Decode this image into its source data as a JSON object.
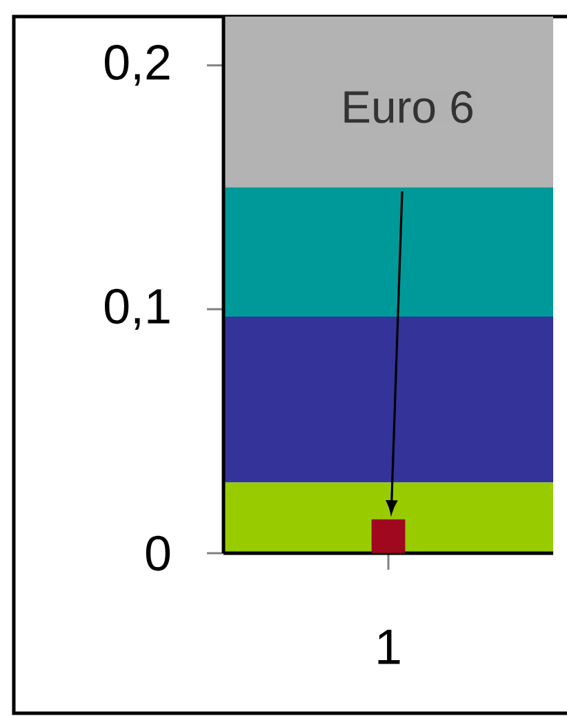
{
  "chart_data": {
    "type": "bar",
    "stacked": true,
    "categories": [
      "1"
    ],
    "series": [
      {
        "color": "#99cc00",
        "values": [
          0.029
        ]
      },
      {
        "color": "#333399",
        "values": [
          0.068
        ]
      },
      {
        "color": "#009999",
        "values": [
          0.053
        ]
      },
      {
        "color": "#b3b3b3",
        "values": [
          0.07
        ]
      },
      {
        "type": "scatter",
        "marker": "square",
        "x": [
          "1"
        ],
        "color": "#a00820",
        "values": [
          0.007
        ]
      }
    ],
    "ylim": [
      0,
      0.22
    ],
    "yticks": [
      {
        "value": 0,
        "label": "0"
      },
      {
        "value": 0.1,
        "label": "0,1"
      },
      {
        "value": 0.2,
        "label": "0,2"
      }
    ],
    "annotations": [
      "Euro 6"
    ]
  }
}
